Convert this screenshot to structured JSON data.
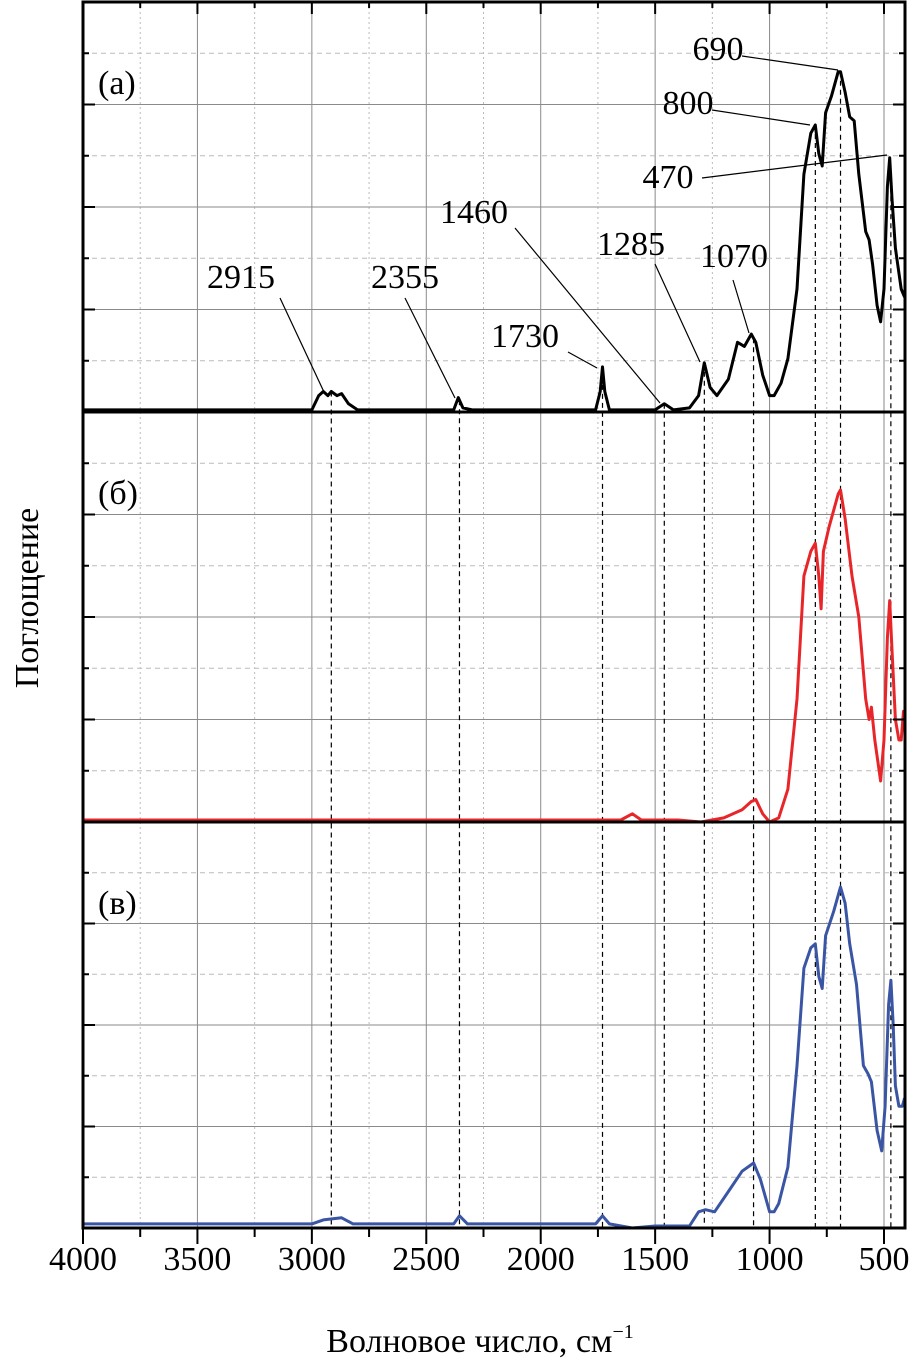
{
  "chart_data": {
    "type": "line",
    "xlabel": "Волновое число, см",
    "xlabel_sup": "−1",
    "ylabel": "Поглощение",
    "xlim": [
      4000,
      410
    ],
    "ylim": [
      0,
      1
    ],
    "x_ticks": [
      4000,
      3500,
      3000,
      2500,
      2000,
      1500,
      1000,
      500
    ],
    "x_tick_labels": [
      "4000",
      "3500",
      "3000",
      "2500",
      "2000",
      "1500",
      "1000",
      "500"
    ],
    "grid": true,
    "marker_lines": [
      2915,
      2355,
      1730,
      1460,
      1285,
      1070,
      800,
      690,
      470
    ],
    "panels": [
      {
        "label": "(a)",
        "color": "#000000",
        "annotations": [
          "690",
          "800",
          "470",
          "1460",
          "1285",
          "1070",
          "1730",
          "2915",
          "2355"
        ],
        "points": [
          [
            4000,
            0.005
          ],
          [
            3000,
            0.005
          ],
          [
            2970,
            0.04
          ],
          [
            2950,
            0.05
          ],
          [
            2930,
            0.04
          ],
          [
            2915,
            0.05
          ],
          [
            2890,
            0.04
          ],
          [
            2870,
            0.045
          ],
          [
            2840,
            0.02
          ],
          [
            2800,
            0.005
          ],
          [
            2380,
            0.005
          ],
          [
            2360,
            0.035
          ],
          [
            2340,
            0.01
          ],
          [
            2300,
            0.005
          ],
          [
            1760,
            0.005
          ],
          [
            1740,
            0.05
          ],
          [
            1730,
            0.11
          ],
          [
            1720,
            0.05
          ],
          [
            1700,
            0.005
          ],
          [
            1500,
            0.005
          ],
          [
            1460,
            0.02
          ],
          [
            1420,
            0.005
          ],
          [
            1350,
            0.01
          ],
          [
            1310,
            0.04
          ],
          [
            1285,
            0.12
          ],
          [
            1260,
            0.06
          ],
          [
            1230,
            0.04
          ],
          [
            1180,
            0.08
          ],
          [
            1140,
            0.17
          ],
          [
            1110,
            0.16
          ],
          [
            1080,
            0.19
          ],
          [
            1060,
            0.17
          ],
          [
            1030,
            0.09
          ],
          [
            1000,
            0.04
          ],
          [
            980,
            0.04
          ],
          [
            950,
            0.07
          ],
          [
            920,
            0.13
          ],
          [
            880,
            0.3
          ],
          [
            850,
            0.58
          ],
          [
            820,
            0.68
          ],
          [
            800,
            0.7
          ],
          [
            785,
            0.63
          ],
          [
            770,
            0.6
          ],
          [
            755,
            0.73
          ],
          [
            730,
            0.77
          ],
          [
            700,
            0.83
          ],
          [
            690,
            0.83
          ],
          [
            670,
            0.78
          ],
          [
            650,
            0.72
          ],
          [
            630,
            0.71
          ],
          [
            610,
            0.58
          ],
          [
            580,
            0.44
          ],
          [
            565,
            0.42
          ],
          [
            550,
            0.36
          ],
          [
            530,
            0.26
          ],
          [
            515,
            0.22
          ],
          [
            500,
            0.3
          ],
          [
            485,
            0.55
          ],
          [
            475,
            0.62
          ],
          [
            465,
            0.52
          ],
          [
            450,
            0.4
          ],
          [
            440,
            0.36
          ],
          [
            425,
            0.3
          ],
          [
            410,
            0.28
          ]
        ]
      },
      {
        "label": "(б)",
        "color": "#e8262a",
        "points": [
          [
            4000,
            0.005
          ],
          [
            1650,
            0.005
          ],
          [
            1600,
            0.02
          ],
          [
            1560,
            0.005
          ],
          [
            1400,
            0.005
          ],
          [
            1300,
            0.0
          ],
          [
            1200,
            0.01
          ],
          [
            1120,
            0.03
          ],
          [
            1080,
            0.05
          ],
          [
            1060,
            0.055
          ],
          [
            1030,
            0.02
          ],
          [
            1000,
            0.0
          ],
          [
            960,
            0.01
          ],
          [
            920,
            0.08
          ],
          [
            880,
            0.3
          ],
          [
            850,
            0.6
          ],
          [
            820,
            0.66
          ],
          [
            800,
            0.68
          ],
          [
            785,
            0.6
          ],
          [
            775,
            0.52
          ],
          [
            765,
            0.66
          ],
          [
            740,
            0.72
          ],
          [
            700,
            0.8
          ],
          [
            690,
            0.81
          ],
          [
            670,
            0.74
          ],
          [
            640,
            0.6
          ],
          [
            610,
            0.5
          ],
          [
            580,
            0.3
          ],
          [
            565,
            0.25
          ],
          [
            555,
            0.28
          ],
          [
            540,
            0.2
          ],
          [
            515,
            0.1
          ],
          [
            500,
            0.2
          ],
          [
            485,
            0.45
          ],
          [
            475,
            0.54
          ],
          [
            465,
            0.42
          ],
          [
            450,
            0.25
          ],
          [
            435,
            0.2
          ],
          [
            425,
            0.2
          ],
          [
            415,
            0.27
          ],
          [
            410,
            0.25
          ]
        ]
      },
      {
        "label": "(в)",
        "color": "#3a55a4",
        "points": [
          [
            4000,
            0.01
          ],
          [
            3000,
            0.01
          ],
          [
            2950,
            0.02
          ],
          [
            2870,
            0.025
          ],
          [
            2820,
            0.01
          ],
          [
            2380,
            0.01
          ],
          [
            2355,
            0.03
          ],
          [
            2320,
            0.01
          ],
          [
            1760,
            0.01
          ],
          [
            1730,
            0.03
          ],
          [
            1700,
            0.01
          ],
          [
            1600,
            0.0
          ],
          [
            1500,
            0.005
          ],
          [
            1350,
            0.005
          ],
          [
            1310,
            0.04
          ],
          [
            1280,
            0.045
          ],
          [
            1240,
            0.04
          ],
          [
            1180,
            0.09
          ],
          [
            1120,
            0.14
          ],
          [
            1070,
            0.16
          ],
          [
            1040,
            0.12
          ],
          [
            1000,
            0.04
          ],
          [
            980,
            0.04
          ],
          [
            960,
            0.06
          ],
          [
            920,
            0.15
          ],
          [
            880,
            0.4
          ],
          [
            850,
            0.64
          ],
          [
            820,
            0.69
          ],
          [
            800,
            0.7
          ],
          [
            785,
            0.62
          ],
          [
            770,
            0.59
          ],
          [
            755,
            0.72
          ],
          [
            720,
            0.78
          ],
          [
            690,
            0.84
          ],
          [
            670,
            0.8
          ],
          [
            650,
            0.7
          ],
          [
            620,
            0.6
          ],
          [
            590,
            0.4
          ],
          [
            570,
            0.38
          ],
          [
            555,
            0.36
          ],
          [
            530,
            0.24
          ],
          [
            510,
            0.19
          ],
          [
            495,
            0.3
          ],
          [
            480,
            0.55
          ],
          [
            470,
            0.61
          ],
          [
            460,
            0.5
          ],
          [
            450,
            0.35
          ],
          [
            435,
            0.3
          ],
          [
            420,
            0.3
          ],
          [
            410,
            0.32
          ]
        ]
      }
    ]
  }
}
